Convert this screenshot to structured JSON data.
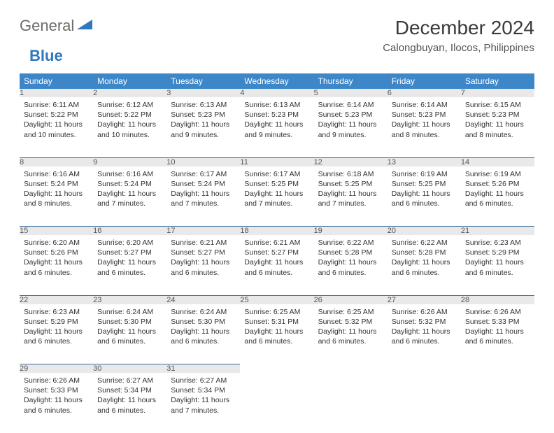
{
  "logo": {
    "word1": "General",
    "word2": "Blue"
  },
  "title": "December 2024",
  "location": "Calongbuyan, Ilocos, Philippines",
  "colors": {
    "header_bg": "#3d87c9",
    "header_text": "#ffffff",
    "daynum_bg": "#e9e9e9",
    "row_border": "#3d6fa3",
    "logo_gray": "#6c6c6c",
    "logo_blue": "#2f78bd"
  },
  "day_headers": [
    "Sunday",
    "Monday",
    "Tuesday",
    "Wednesday",
    "Thursday",
    "Friday",
    "Saturday"
  ],
  "weeks": [
    [
      {
        "n": "1",
        "sunrise": "6:11 AM",
        "sunset": "5:22 PM",
        "daylight": "11 hours and 10 minutes."
      },
      {
        "n": "2",
        "sunrise": "6:12 AM",
        "sunset": "5:22 PM",
        "daylight": "11 hours and 10 minutes."
      },
      {
        "n": "3",
        "sunrise": "6:13 AM",
        "sunset": "5:23 PM",
        "daylight": "11 hours and 9 minutes."
      },
      {
        "n": "4",
        "sunrise": "6:13 AM",
        "sunset": "5:23 PM",
        "daylight": "11 hours and 9 minutes."
      },
      {
        "n": "5",
        "sunrise": "6:14 AM",
        "sunset": "5:23 PM",
        "daylight": "11 hours and 9 minutes."
      },
      {
        "n": "6",
        "sunrise": "6:14 AM",
        "sunset": "5:23 PM",
        "daylight": "11 hours and 8 minutes."
      },
      {
        "n": "7",
        "sunrise": "6:15 AM",
        "sunset": "5:23 PM",
        "daylight": "11 hours and 8 minutes."
      }
    ],
    [
      {
        "n": "8",
        "sunrise": "6:16 AM",
        "sunset": "5:24 PM",
        "daylight": "11 hours and 8 minutes."
      },
      {
        "n": "9",
        "sunrise": "6:16 AM",
        "sunset": "5:24 PM",
        "daylight": "11 hours and 7 minutes."
      },
      {
        "n": "10",
        "sunrise": "6:17 AM",
        "sunset": "5:24 PM",
        "daylight": "11 hours and 7 minutes."
      },
      {
        "n": "11",
        "sunrise": "6:17 AM",
        "sunset": "5:25 PM",
        "daylight": "11 hours and 7 minutes."
      },
      {
        "n": "12",
        "sunrise": "6:18 AM",
        "sunset": "5:25 PM",
        "daylight": "11 hours and 7 minutes."
      },
      {
        "n": "13",
        "sunrise": "6:19 AM",
        "sunset": "5:25 PM",
        "daylight": "11 hours and 6 minutes."
      },
      {
        "n": "14",
        "sunrise": "6:19 AM",
        "sunset": "5:26 PM",
        "daylight": "11 hours and 6 minutes."
      }
    ],
    [
      {
        "n": "15",
        "sunrise": "6:20 AM",
        "sunset": "5:26 PM",
        "daylight": "11 hours and 6 minutes."
      },
      {
        "n": "16",
        "sunrise": "6:20 AM",
        "sunset": "5:27 PM",
        "daylight": "11 hours and 6 minutes."
      },
      {
        "n": "17",
        "sunrise": "6:21 AM",
        "sunset": "5:27 PM",
        "daylight": "11 hours and 6 minutes."
      },
      {
        "n": "18",
        "sunrise": "6:21 AM",
        "sunset": "5:27 PM",
        "daylight": "11 hours and 6 minutes."
      },
      {
        "n": "19",
        "sunrise": "6:22 AM",
        "sunset": "5:28 PM",
        "daylight": "11 hours and 6 minutes."
      },
      {
        "n": "20",
        "sunrise": "6:22 AM",
        "sunset": "5:28 PM",
        "daylight": "11 hours and 6 minutes."
      },
      {
        "n": "21",
        "sunrise": "6:23 AM",
        "sunset": "5:29 PM",
        "daylight": "11 hours and 6 minutes."
      }
    ],
    [
      {
        "n": "22",
        "sunrise": "6:23 AM",
        "sunset": "5:29 PM",
        "daylight": "11 hours and 6 minutes."
      },
      {
        "n": "23",
        "sunrise": "6:24 AM",
        "sunset": "5:30 PM",
        "daylight": "11 hours and 6 minutes."
      },
      {
        "n": "24",
        "sunrise": "6:24 AM",
        "sunset": "5:30 PM",
        "daylight": "11 hours and 6 minutes."
      },
      {
        "n": "25",
        "sunrise": "6:25 AM",
        "sunset": "5:31 PM",
        "daylight": "11 hours and 6 minutes."
      },
      {
        "n": "26",
        "sunrise": "6:25 AM",
        "sunset": "5:32 PM",
        "daylight": "11 hours and 6 minutes."
      },
      {
        "n": "27",
        "sunrise": "6:26 AM",
        "sunset": "5:32 PM",
        "daylight": "11 hours and 6 minutes."
      },
      {
        "n": "28",
        "sunrise": "6:26 AM",
        "sunset": "5:33 PM",
        "daylight": "11 hours and 6 minutes."
      }
    ],
    [
      {
        "n": "29",
        "sunrise": "6:26 AM",
        "sunset": "5:33 PM",
        "daylight": "11 hours and 6 minutes."
      },
      {
        "n": "30",
        "sunrise": "6:27 AM",
        "sunset": "5:34 PM",
        "daylight": "11 hours and 6 minutes."
      },
      {
        "n": "31",
        "sunrise": "6:27 AM",
        "sunset": "5:34 PM",
        "daylight": "11 hours and 7 minutes."
      },
      null,
      null,
      null,
      null
    ]
  ],
  "labels": {
    "sunrise": "Sunrise:",
    "sunset": "Sunset:",
    "daylight": "Daylight:"
  }
}
